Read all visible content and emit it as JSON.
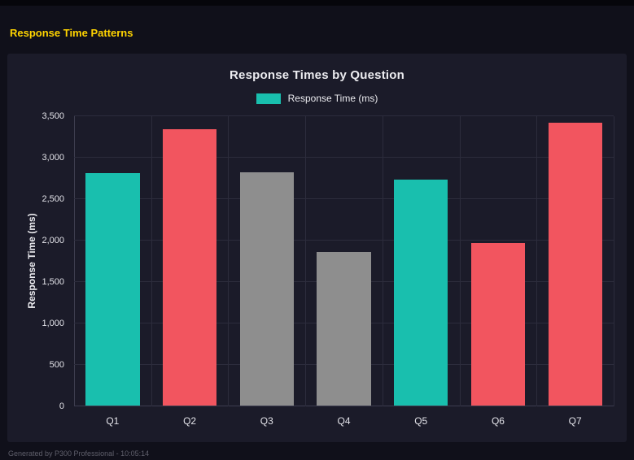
{
  "page": {
    "title": "Response Time Patterns",
    "footer": "Generated by P300 Professional - 10:05:14"
  },
  "colors": {
    "page_bg": "#10101a",
    "panel_bg": "#1b1b29",
    "title_yellow": "#ffd400",
    "teal": "#19bfae",
    "red": "#f2555f",
    "gray": "#8e8e8e",
    "grid": "#2c2c3c",
    "axis_text": "#e2e2e8",
    "footer_text": "#5f5f6b"
  },
  "chart_data": {
    "type": "bar",
    "title": "Response Times by Question",
    "legend": [
      {
        "label": "Response Time (ms)",
        "color": "#19bfae"
      }
    ],
    "legend_position": "top",
    "categories": [
      "Q1",
      "Q2",
      "Q3",
      "Q4",
      "Q5",
      "Q6",
      "Q7"
    ],
    "values": [
      2800,
      3330,
      2810,
      1850,
      2730,
      1960,
      3410
    ],
    "bar_colors": [
      "#19bfae",
      "#f2555f",
      "#8e8e8e",
      "#8e8e8e",
      "#19bfae",
      "#f2555f",
      "#f2555f"
    ],
    "xlabel": "",
    "ylabel": "Response Time (ms)",
    "ylim": [
      0,
      3500
    ],
    "yticks": [
      0,
      500,
      1000,
      1500,
      2000,
      2500,
      3000,
      3500
    ],
    "grid": true
  }
}
